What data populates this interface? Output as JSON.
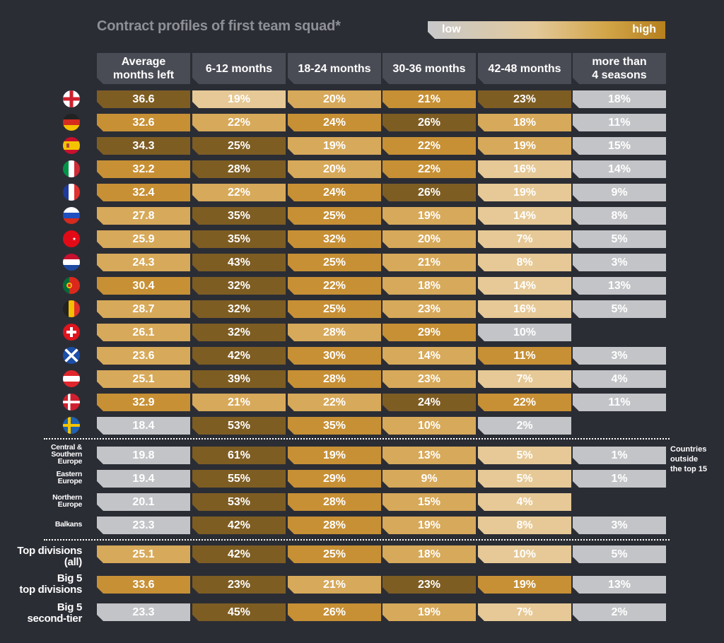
{
  "title": "Contract profiles of first team squad*",
  "legend": {
    "low": "low",
    "high": "high",
    "gradient_colors": [
      "#c8c9cb",
      "#e3c99a",
      "#d2a548",
      "#b5801e"
    ]
  },
  "color_scale": {
    "lightest": "#e6c996",
    "light": "#d7a95a",
    "medium": "#c79035",
    "dark": "#7e5d23",
    "grey": "#c3c4c7"
  },
  "columns": [
    {
      "line1": "Average",
      "line2": "months left"
    },
    {
      "line1": "6-12 months",
      "line2": ""
    },
    {
      "line1": "18-24 months",
      "line2": ""
    },
    {
      "line1": "30-36 months",
      "line2": ""
    },
    {
      "line1": "42-48 months",
      "line2": ""
    },
    {
      "line1": "more than",
      "line2": "4 seasons"
    }
  ],
  "footnote_label": {
    "line1": "Countries",
    "line2": "outside",
    "line3": "the top 15"
  },
  "chart_data": {
    "type": "table",
    "title": "Contract profiles of first team squad*",
    "columns": [
      "Average months left",
      "6-12 months",
      "18-24 months",
      "30-36 months",
      "42-48 months",
      "more than 4 seasons"
    ],
    "rows": [
      {
        "flag": "england-flag-icon",
        "l1": "",
        "l2": "",
        "l3": "",
        "values": [
          "36.6",
          "19%",
          "20%",
          "21%",
          "23%",
          "18%"
        ],
        "colors": [
          "dark",
          "lightest",
          "light",
          "medium",
          "dark",
          "grey"
        ]
      },
      {
        "flag": "germany-flag-icon",
        "l1": "",
        "l2": "",
        "l3": "",
        "values": [
          "32.6",
          "22%",
          "24%",
          "26%",
          "18%",
          "11%"
        ],
        "colors": [
          "medium",
          "light",
          "medium",
          "dark",
          "light",
          "grey"
        ]
      },
      {
        "flag": "spain-flag-icon",
        "l1": "",
        "l2": "",
        "l3": "",
        "values": [
          "34.3",
          "25%",
          "19%",
          "22%",
          "19%",
          "15%"
        ],
        "colors": [
          "dark",
          "dark",
          "light",
          "medium",
          "light",
          "grey"
        ]
      },
      {
        "flag": "italy-flag-icon",
        "l1": "",
        "l2": "",
        "l3": "",
        "values": [
          "32.2",
          "28%",
          "20%",
          "22%",
          "16%",
          "14%"
        ],
        "colors": [
          "medium",
          "dark",
          "light",
          "medium",
          "lightest",
          "grey"
        ]
      },
      {
        "flag": "france-flag-icon",
        "l1": "",
        "l2": "",
        "l3": "",
        "values": [
          "32.4",
          "22%",
          "24%",
          "26%",
          "19%",
          "9%"
        ],
        "colors": [
          "medium",
          "light",
          "medium",
          "dark",
          "lightest",
          "grey"
        ]
      },
      {
        "flag": "russia-flag-icon",
        "l1": "",
        "l2": "",
        "l3": "",
        "values": [
          "27.8",
          "35%",
          "25%",
          "19%",
          "14%",
          "8%"
        ],
        "colors": [
          "light",
          "dark",
          "medium",
          "light",
          "lightest",
          "grey"
        ]
      },
      {
        "flag": "turkey-flag-icon",
        "l1": "",
        "l2": "",
        "l3": "",
        "values": [
          "25.9",
          "35%",
          "32%",
          "20%",
          "7%",
          "5%"
        ],
        "colors": [
          "light",
          "dark",
          "medium",
          "light",
          "lightest",
          "grey"
        ]
      },
      {
        "flag": "netherlands-flag-icon",
        "l1": "",
        "l2": "",
        "l3": "",
        "values": [
          "24.3",
          "43%",
          "25%",
          "21%",
          "8%",
          "3%"
        ],
        "colors": [
          "light",
          "dark",
          "medium",
          "light",
          "lightest",
          "grey"
        ]
      },
      {
        "flag": "portugal-flag-icon",
        "l1": "",
        "l2": "",
        "l3": "",
        "values": [
          "30.4",
          "32%",
          "22%",
          "18%",
          "14%",
          "13%"
        ],
        "colors": [
          "medium",
          "dark",
          "medium",
          "light",
          "lightest",
          "grey"
        ]
      },
      {
        "flag": "belgium-flag-icon",
        "l1": "",
        "l2": "",
        "l3": "",
        "values": [
          "28.7",
          "32%",
          "25%",
          "23%",
          "16%",
          "5%"
        ],
        "colors": [
          "light",
          "dark",
          "medium",
          "light",
          "lightest",
          "grey"
        ]
      },
      {
        "flag": "switzerland-flag-icon",
        "l1": "",
        "l2": "",
        "l3": "",
        "values": [
          "26.1",
          "32%",
          "28%",
          "29%",
          "10%",
          ""
        ],
        "colors": [
          "light",
          "dark",
          "light",
          "medium",
          "grey",
          "none"
        ]
      },
      {
        "flag": "scotland-flag-icon",
        "l1": "",
        "l2": "",
        "l3": "",
        "values": [
          "23.6",
          "42%",
          "30%",
          "14%",
          "11%",
          "3%"
        ],
        "colors": [
          "light",
          "dark",
          "medium",
          "light",
          "medium",
          "grey"
        ]
      },
      {
        "flag": "austria-flag-icon",
        "l1": "",
        "l2": "",
        "l3": "",
        "values": [
          "25.1",
          "39%",
          "28%",
          "23%",
          "7%",
          "4%"
        ],
        "colors": [
          "light",
          "dark",
          "medium",
          "light",
          "lightest",
          "grey"
        ]
      },
      {
        "flag": "denmark-flag-icon",
        "l1": "",
        "l2": "",
        "l3": "",
        "values": [
          "32.9",
          "21%",
          "22%",
          "24%",
          "22%",
          "11%"
        ],
        "colors": [
          "medium",
          "light",
          "light",
          "dark",
          "medium",
          "grey"
        ]
      },
      {
        "flag": "sweden-flag-icon",
        "l1": "",
        "l2": "",
        "l3": "",
        "values": [
          "18.4",
          "53%",
          "35%",
          "10%",
          "2%",
          ""
        ],
        "colors": [
          "grey",
          "dark",
          "medium",
          "light",
          "grey",
          "none"
        ]
      },
      {
        "flag": "",
        "l1": "Central &",
        "l2": "Southern",
        "l3": "Europe",
        "values": [
          "19.8",
          "61%",
          "19%",
          "13%",
          "5%",
          "1%"
        ],
        "colors": [
          "grey",
          "dark",
          "medium",
          "light",
          "lightest",
          "grey"
        ]
      },
      {
        "flag": "",
        "l1": "Eastern",
        "l2": "Europe",
        "l3": "",
        "values": [
          "19.4",
          "55%",
          "29%",
          "9%",
          "5%",
          "1%"
        ],
        "colors": [
          "grey",
          "dark",
          "medium",
          "light",
          "lightest",
          "grey"
        ]
      },
      {
        "flag": "",
        "l1": "Northern",
        "l2": "Europe",
        "l3": "",
        "values": [
          "20.1",
          "53%",
          "28%",
          "15%",
          "4%",
          ""
        ],
        "colors": [
          "grey",
          "dark",
          "medium",
          "light",
          "lightest",
          "none"
        ]
      },
      {
        "flag": "",
        "l1": "Balkans",
        "l2": "",
        "l3": "",
        "values": [
          "23.3",
          "42%",
          "28%",
          "19%",
          "8%",
          "3%"
        ],
        "colors": [
          "grey",
          "dark",
          "medium",
          "light",
          "lightest",
          "grey"
        ]
      },
      {
        "flag": "",
        "l1": "Top divisions",
        "l2": "(all)",
        "l3": "",
        "values": [
          "25.1",
          "42%",
          "25%",
          "18%",
          "10%",
          "5%"
        ],
        "colors": [
          "light",
          "dark",
          "medium",
          "light",
          "lightest",
          "grey"
        ]
      },
      {
        "flag": "",
        "l1": "Big 5",
        "l2": "top divisions",
        "l3": "",
        "values": [
          "33.6",
          "23%",
          "21%",
          "23%",
          "19%",
          "13%"
        ],
        "colors": [
          "medium",
          "dark",
          "light",
          "dark",
          "medium",
          "grey"
        ]
      },
      {
        "flag": "",
        "l1": "Big 5",
        "l2": "second-tier",
        "l3": "",
        "values": [
          "23.3",
          "45%",
          "26%",
          "19%",
          "7%",
          "2%"
        ],
        "colors": [
          "grey",
          "dark",
          "medium",
          "light",
          "lightest",
          "grey"
        ]
      }
    ]
  }
}
